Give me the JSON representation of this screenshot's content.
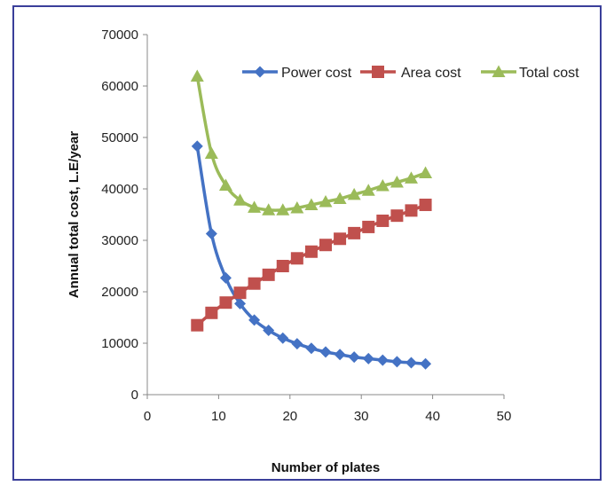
{
  "chart_data": {
    "type": "line",
    "title": "",
    "xlabel": "Number of plates",
    "ylabel": "Annual total cost, L.E/year",
    "xlim": [
      0,
      50
    ],
    "ylim": [
      0,
      70000
    ],
    "xticks": [
      0,
      10,
      20,
      30,
      40,
      50
    ],
    "yticks": [
      0,
      10000,
      20000,
      30000,
      40000,
      50000,
      60000,
      70000
    ],
    "grid": false,
    "legend": "top-right",
    "x": [
      7,
      9,
      11,
      13,
      15,
      17,
      19,
      21,
      23,
      25,
      27,
      29,
      31,
      33,
      35,
      37,
      39
    ],
    "series": [
      {
        "name": "Power cost",
        "marker": "diamond",
        "color": "#4472c4",
        "values": [
          48300,
          31300,
          22700,
          17700,
          14500,
          12500,
          11000,
          9900,
          9000,
          8300,
          7800,
          7300,
          7000,
          6700,
          6400,
          6200,
          6000
        ]
      },
      {
        "name": "Area cost",
        "marker": "square",
        "color": "#c0504d",
        "values": [
          13500,
          15900,
          17900,
          19800,
          21600,
          23300,
          25000,
          26500,
          27800,
          29100,
          30300,
          31400,
          32600,
          33800,
          34800,
          35800,
          36900
        ]
      },
      {
        "name": "Total cost",
        "marker": "triangle",
        "color": "#9bbb59",
        "values": [
          61900,
          46900,
          40700,
          37800,
          36400,
          35900,
          35900,
          36300,
          36900,
          37500,
          38100,
          38900,
          39700,
          40600,
          41300,
          42100,
          43100
        ]
      }
    ]
  }
}
